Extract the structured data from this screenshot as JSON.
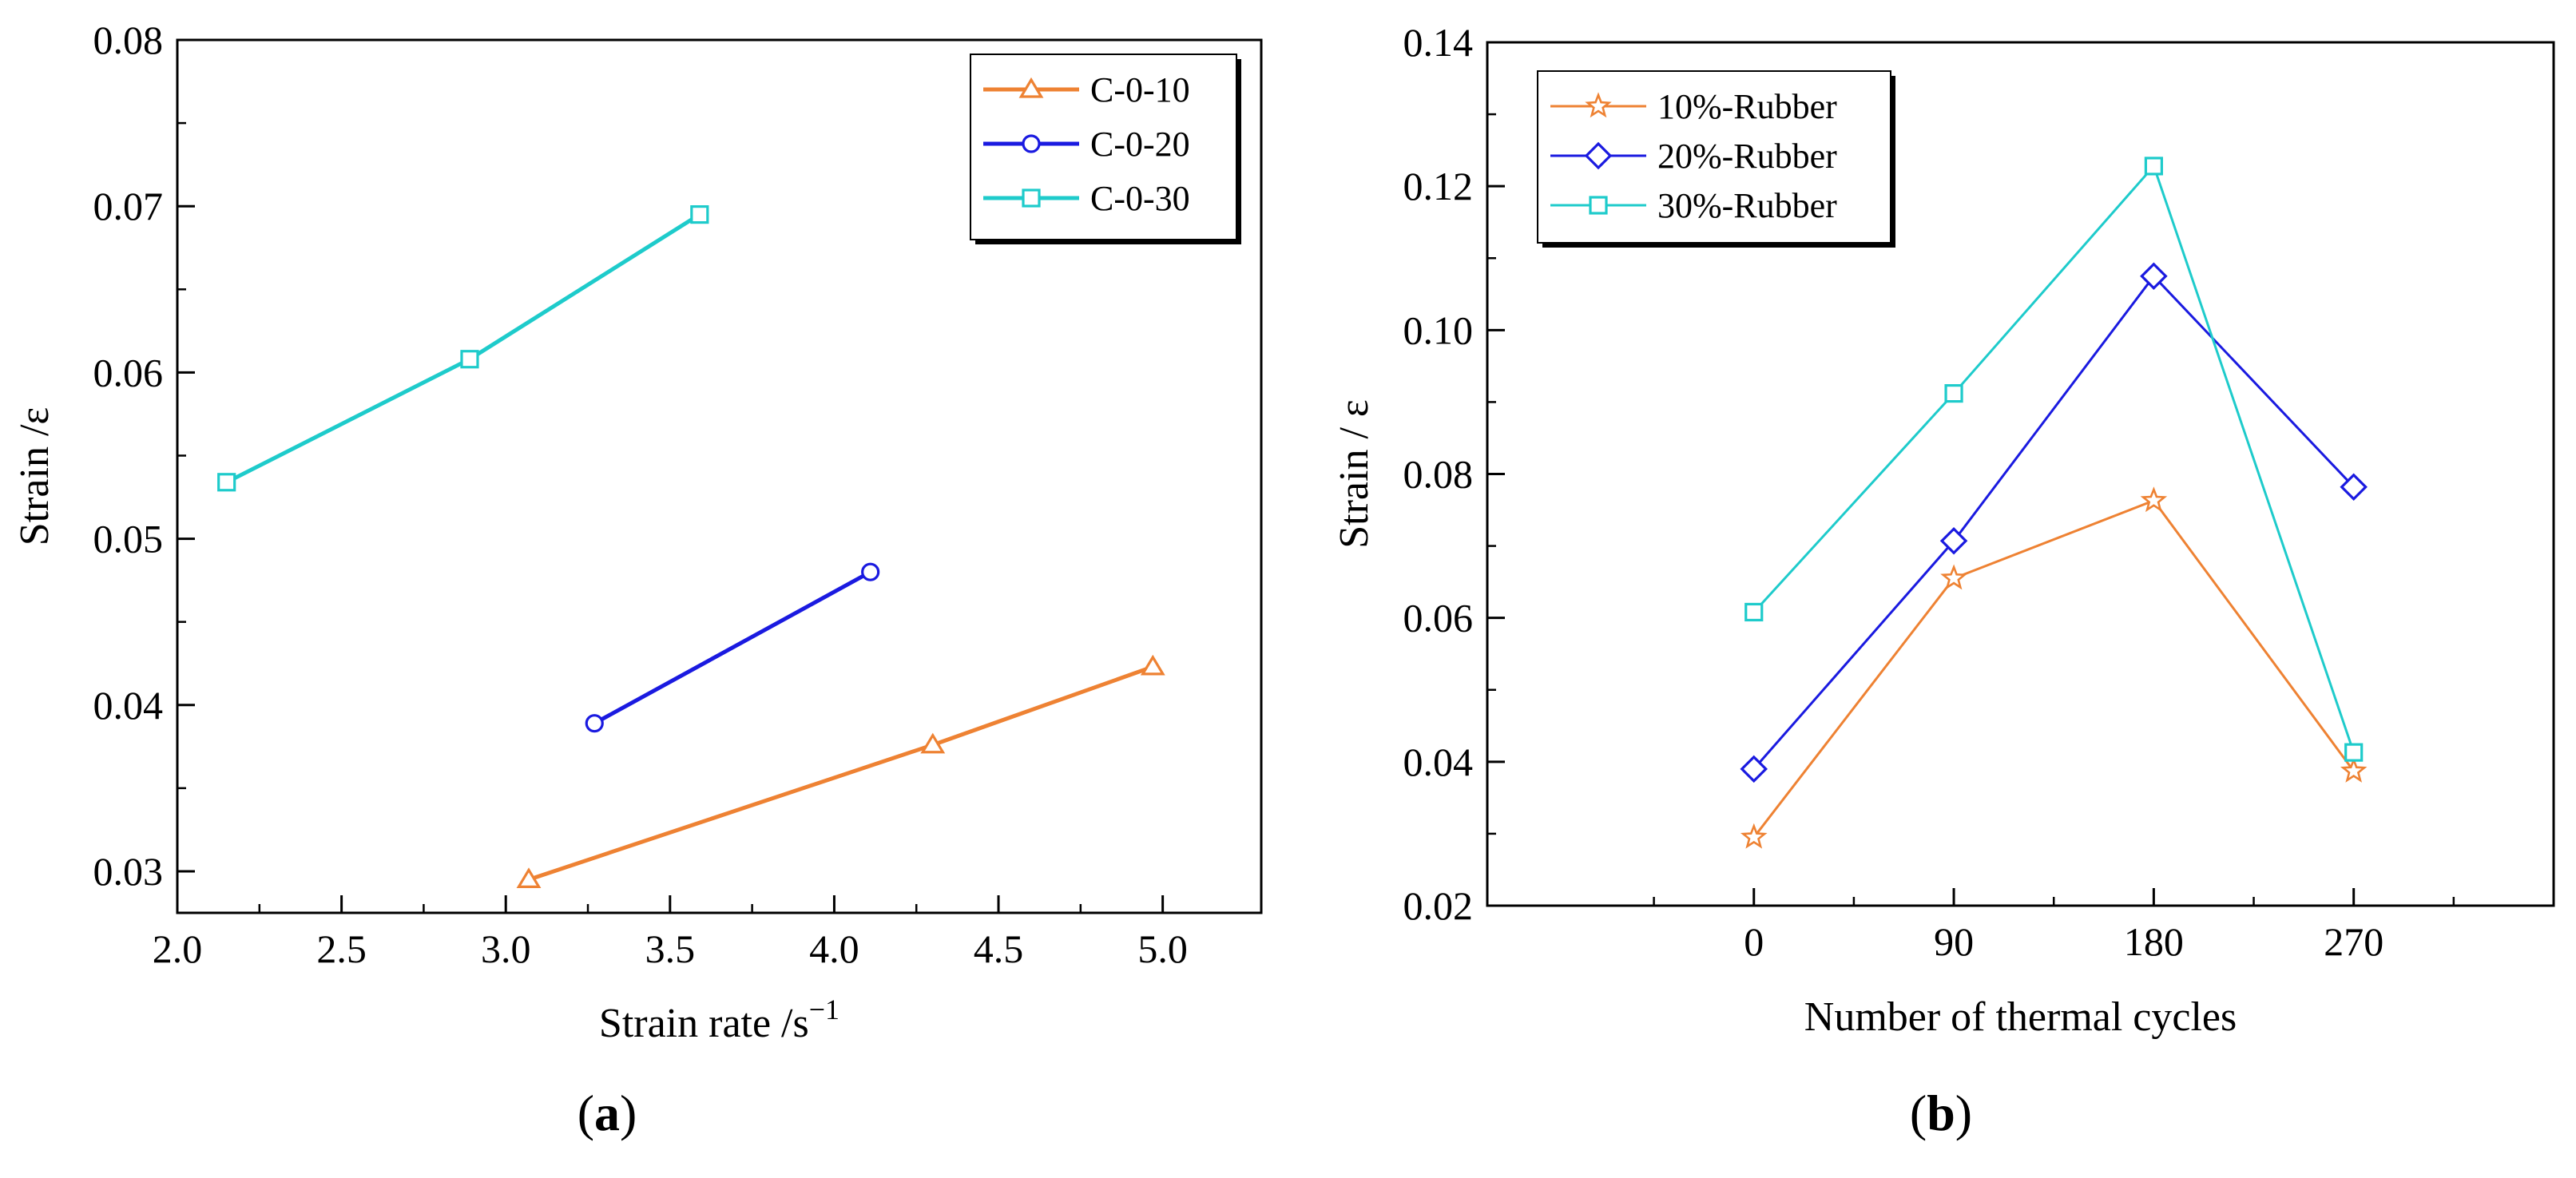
{
  "chart_data": [
    {
      "type": "line",
      "panel_label": {
        "open": "(",
        "letter": "a",
        "close": ")"
      },
      "xlabel": {
        "text": "Strain rate /s",
        "sup": "−1"
      },
      "ylabel": "Strain /ε",
      "xlim": [
        2.0,
        5.3
      ],
      "ylim": [
        0.0275,
        0.08
      ],
      "x_ticks": [
        "2.0",
        "2.5",
        "3.0",
        "3.5",
        "4.0",
        "4.5",
        "5.0"
      ],
      "x_tick_values": [
        2.0,
        2.5,
        3.0,
        3.5,
        4.0,
        4.5,
        5.0
      ],
      "x_minor_ticks": [
        2.25,
        2.75,
        3.25,
        3.75,
        4.25,
        4.75
      ],
      "y_ticks": [
        "0.03",
        "0.04",
        "0.05",
        "0.06",
        "0.07",
        "0.08"
      ],
      "y_tick_values": [
        0.03,
        0.04,
        0.05,
        0.06,
        0.07,
        0.08
      ],
      "y_minor_ticks": [
        0.035,
        0.045,
        0.055,
        0.065,
        0.075
      ],
      "legend_position": "top-right",
      "series": [
        {
          "name": "C-0-10",
          "color": "#ee8233",
          "marker": "triangle",
          "x": [
            3.07,
            4.3,
            4.97
          ],
          "y": [
            0.0295,
            0.0376,
            0.0423
          ]
        },
        {
          "name": "C-0-20",
          "color": "#1a1ae0",
          "marker": "circle",
          "x": [
            3.27,
            4.11
          ],
          "y": [
            0.0389,
            0.048
          ]
        },
        {
          "name": "C-0-30",
          "color": "#1ecbcb",
          "marker": "square",
          "x": [
            2.15,
            2.89,
            3.59
          ],
          "y": [
            0.0534,
            0.0608,
            0.0695
          ]
        }
      ]
    },
    {
      "type": "line",
      "panel_label": {
        "open": "(",
        "letter": "b",
        "close": ")"
      },
      "xlabel": {
        "text": "Number of  thermal cycles",
        "sup": ""
      },
      "ylabel": "Strain / ε",
      "xlim": [
        -120,
        360
      ],
      "ylim": [
        0.02,
        0.14
      ],
      "x_ticks": [
        "0",
        "90",
        "180",
        "270"
      ],
      "x_tick_values": [
        0,
        90,
        180,
        270
      ],
      "x_minor_ticks": [
        -45,
        45,
        135,
        225,
        315
      ],
      "y_ticks": [
        "0.02",
        "0.04",
        "0.06",
        "0.08",
        "0.10",
        "0.12",
        "0.14"
      ],
      "y_tick_values": [
        0.02,
        0.04,
        0.06,
        0.08,
        0.1,
        0.12,
        0.14
      ],
      "y_minor_ticks": [
        0.03,
        0.05,
        0.07,
        0.09,
        0.11,
        0.13
      ],
      "legend_position": "top-left",
      "series": [
        {
          "name": "10%-Rubber",
          "color": "#ee8233",
          "marker": "star",
          "x": [
            0,
            90,
            180,
            270
          ],
          "y": [
            0.0295,
            0.0655,
            0.0763,
            0.0387
          ]
        },
        {
          "name": "20%-Rubber",
          "color": "#1a1ae0",
          "marker": "diamond",
          "x": [
            0,
            90,
            180,
            270
          ],
          "y": [
            0.039,
            0.0707,
            0.1075,
            0.0782
          ]
        },
        {
          "name": "30%-Rubber",
          "color": "#1ecbcb",
          "marker": "square",
          "x": [
            0,
            90,
            180,
            270
          ],
          "y": [
            0.0608,
            0.0912,
            0.1228,
            0.0413
          ]
        }
      ]
    }
  ]
}
